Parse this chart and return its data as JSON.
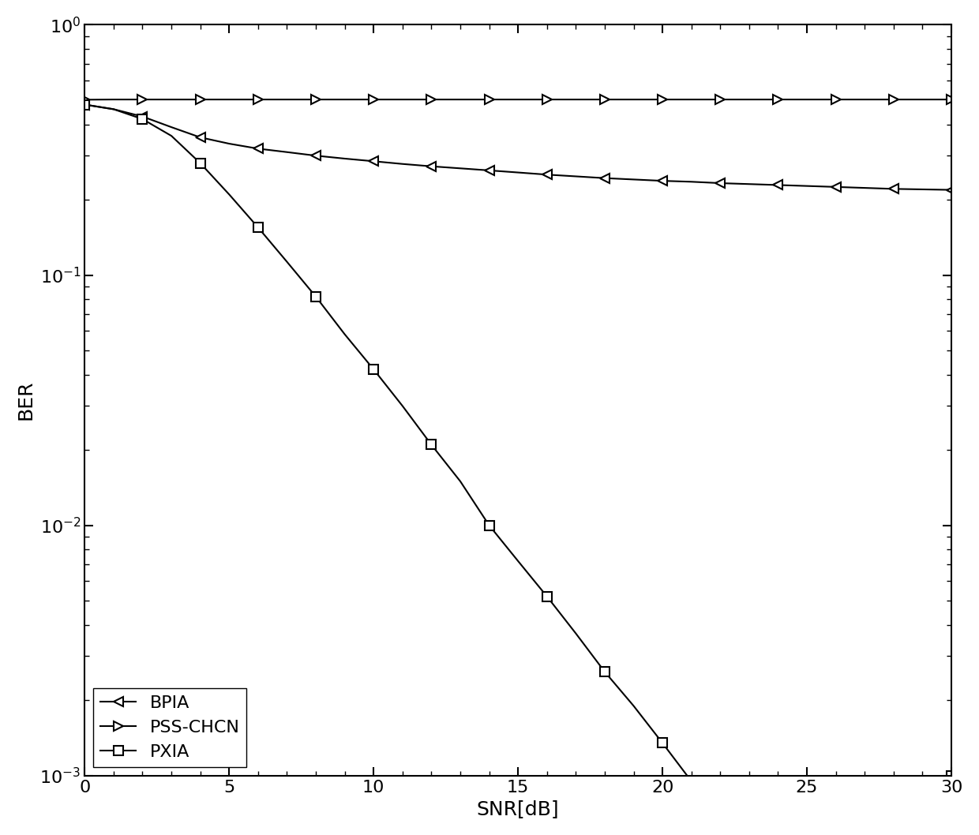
{
  "title": "",
  "xlabel": "SNR[dB]",
  "ylabel": "BER",
  "xlim": [
    0,
    30
  ],
  "snr": [
    0,
    1,
    2,
    3,
    4,
    5,
    6,
    7,
    8,
    9,
    10,
    11,
    12,
    13,
    14,
    15,
    16,
    17,
    18,
    19,
    20,
    21,
    22,
    23,
    24,
    25,
    26,
    27,
    28,
    29,
    30
  ],
  "BPIA": [
    0.48,
    0.46,
    0.43,
    0.39,
    0.355,
    0.335,
    0.32,
    0.31,
    0.3,
    0.292,
    0.285,
    0.278,
    0.272,
    0.267,
    0.262,
    0.257,
    0.252,
    0.248,
    0.244,
    0.241,
    0.238,
    0.236,
    0.233,
    0.231,
    0.229,
    0.227,
    0.225,
    0.223,
    0.221,
    0.22,
    0.219
  ],
  "PSS_CHCN": [
    0.502,
    0.503,
    0.503,
    0.503,
    0.503,
    0.503,
    0.503,
    0.503,
    0.503,
    0.503,
    0.503,
    0.503,
    0.503,
    0.503,
    0.503,
    0.503,
    0.503,
    0.503,
    0.503,
    0.503,
    0.503,
    0.503,
    0.503,
    0.503,
    0.503,
    0.503,
    0.503,
    0.503,
    0.503,
    0.503,
    0.503
  ],
  "PXIA": [
    0.48,
    0.46,
    0.42,
    0.36,
    0.28,
    0.21,
    0.155,
    0.113,
    0.082,
    0.058,
    0.042,
    0.03,
    0.021,
    0.015,
    0.01,
    0.0072,
    0.0052,
    0.0037,
    0.0026,
    0.0019,
    0.00135,
    0.00095,
    0.00068,
    0.00048,
    0.00034,
    0.00024,
    0.00018,
    0.000125,
    7.5e-05,
    3.2e-05,
    0.001
  ],
  "snr_markers": [
    0,
    2,
    4,
    6,
    8,
    10,
    12,
    14,
    16,
    18,
    20,
    22,
    24,
    26,
    28,
    30
  ],
  "line_color": "#000000",
  "marker_size": 9,
  "linewidth": 1.5,
  "legend_loc": "lower left",
  "fontsize": 18,
  "tick_fontsize": 16,
  "background_color": "#ffffff"
}
